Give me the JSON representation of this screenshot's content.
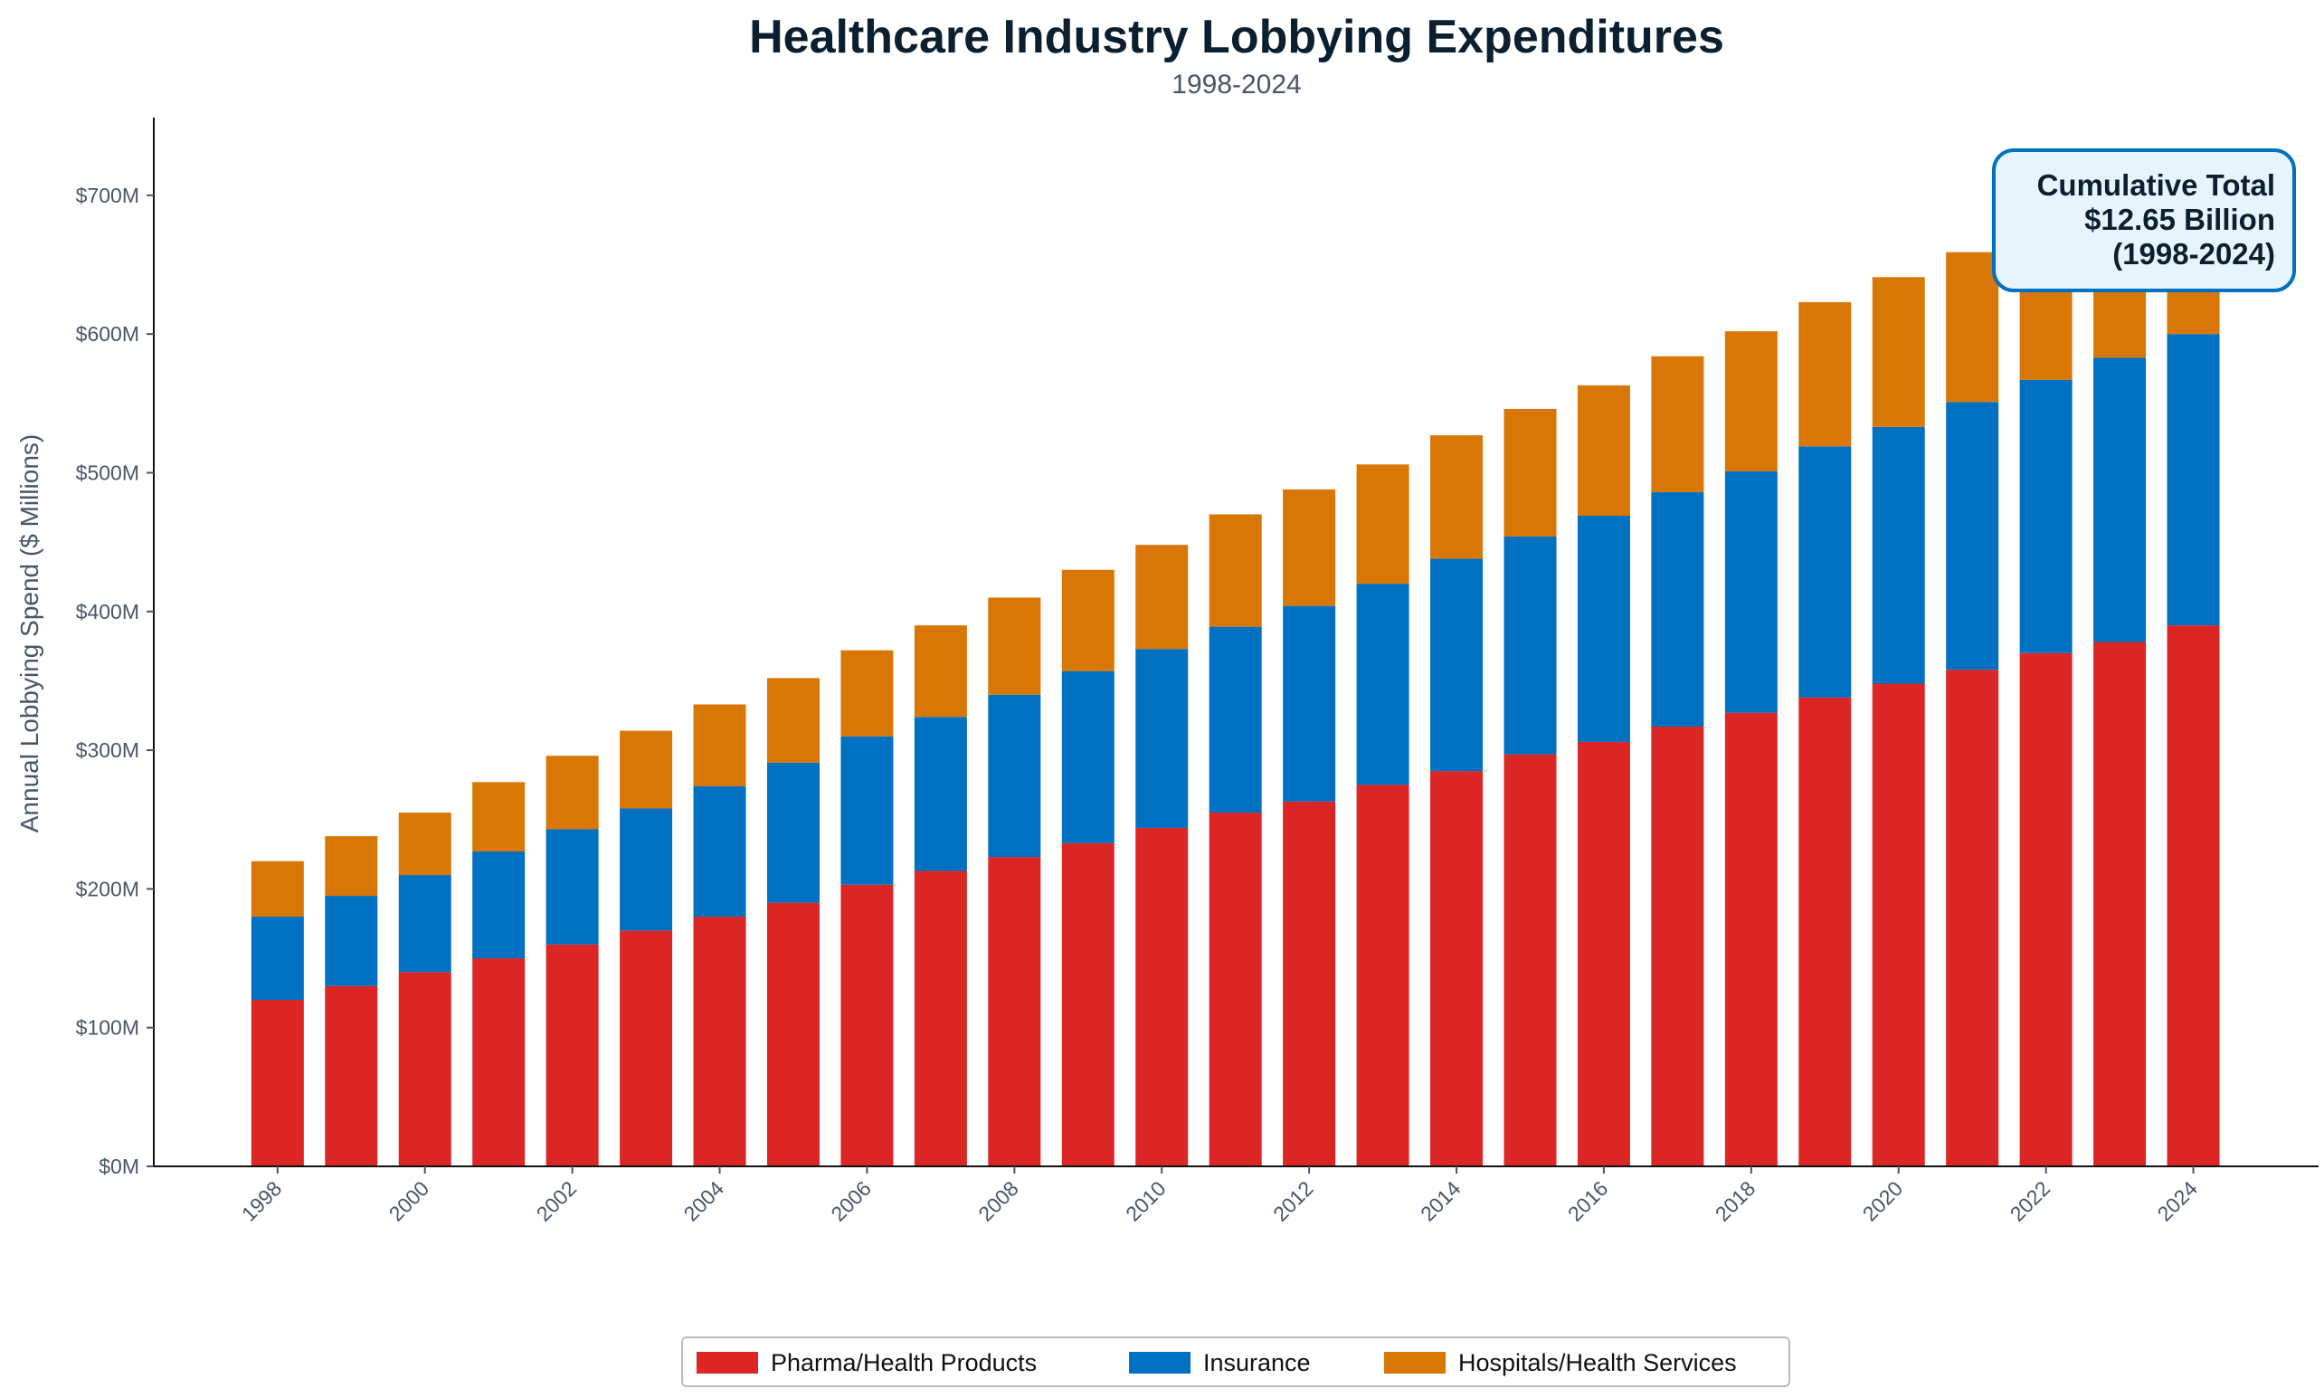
{
  "chart_data": {
    "type": "bar",
    "stacked": true,
    "title": "Healthcare Industry Lobbying Expenditures",
    "subtitle": "1998-2024",
    "xlabel": "",
    "ylabel": "Annual Lobbying Spend ($ Millions)",
    "ylim": [
      0,
      756
    ],
    "yticks": [
      0,
      100,
      200,
      300,
      400,
      500,
      600,
      700
    ],
    "ytick_labels": [
      "$0M",
      "$100M",
      "$200M",
      "$300M",
      "$400M",
      "$500M",
      "$600M",
      "$700M"
    ],
    "xtick_labels": [
      "1998",
      "2000",
      "2002",
      "2004",
      "2006",
      "2008",
      "2010",
      "2012",
      "2014",
      "2016",
      "2018",
      "2020",
      "2022",
      "2024"
    ],
    "grid": false,
    "legend_placement": "bottom",
    "categories": [
      1998,
      1999,
      2000,
      2001,
      2002,
      2003,
      2004,
      2005,
      2006,
      2007,
      2008,
      2009,
      2010,
      2011,
      2012,
      2013,
      2014,
      2015,
      2016,
      2017,
      2018,
      2019,
      2020,
      2021,
      2022,
      2023,
      2024
    ],
    "series": [
      {
        "name": "Pharma/Health Products",
        "color": "#dc2626",
        "values": [
          120,
          130,
          140,
          150,
          160,
          170,
          180,
          190,
          203,
          213,
          223,
          233,
          244,
          255,
          263,
          275,
          285,
          297,
          306,
          317,
          327,
          338,
          348,
          358,
          370,
          378,
          390
        ]
      },
      {
        "name": "Insurance",
        "color": "#0070c0",
        "values": [
          60,
          65,
          70,
          77,
          83,
          88,
          94,
          101,
          107,
          111,
          117,
          124,
          129,
          134,
          141,
          145,
          153,
          157,
          163,
          169,
          174,
          181,
          185,
          193,
          197,
          205,
          210
        ]
      },
      {
        "name": "Hospitals/Health Services",
        "color": "#d97706",
        "values": [
          40,
          43,
          45,
          50,
          53,
          56,
          59,
          61,
          62,
          66,
          70,
          73,
          75,
          81,
          84,
          86,
          89,
          92,
          94,
          98,
          101,
          104,
          108,
          108,
          113,
          118,
          124
        ]
      }
    ],
    "annotation": {
      "lines": [
        "Cumulative Total",
        "$12.65 Billion",
        "(1998-2024)"
      ],
      "border_color": "#0070c0",
      "fill_color": "#e8f4fc"
    }
  }
}
